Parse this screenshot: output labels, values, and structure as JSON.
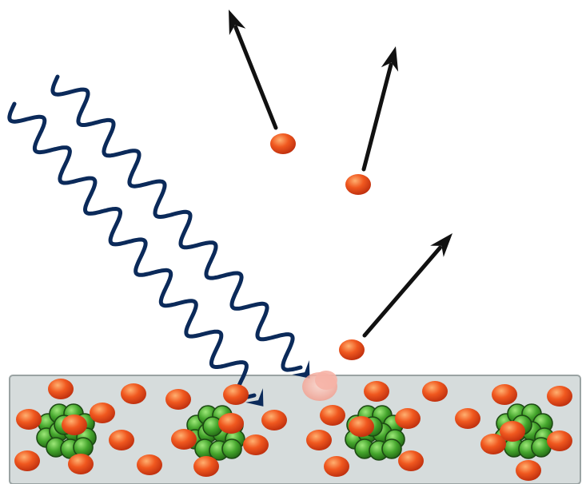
{
  "diagram": {
    "colors": {
      "background": "#ffffff",
      "metal_surface": "#d6dcdc",
      "metal_edge": "#9aa3a3",
      "electron": "#e8431a",
      "electron_highlight": "#ffb070",
      "nucleon": "#3a9a28",
      "nucleon_highlight": "#8fe070",
      "nucleon_outline": "#1d4a14",
      "photon_wave": "#0b2a5a",
      "emission_arrow": "#111111",
      "impact_flash": "#f4a79a"
    },
    "icons": {
      "photon": "wavy-arrow-icon",
      "electron": "sphere-icon",
      "nucleus": "cluster-icon",
      "emission": "straight-arrow-icon"
    },
    "counts": {
      "incident_photons": 2,
      "emitted_electrons": 3,
      "atoms_in_lattice": 4
    }
  }
}
